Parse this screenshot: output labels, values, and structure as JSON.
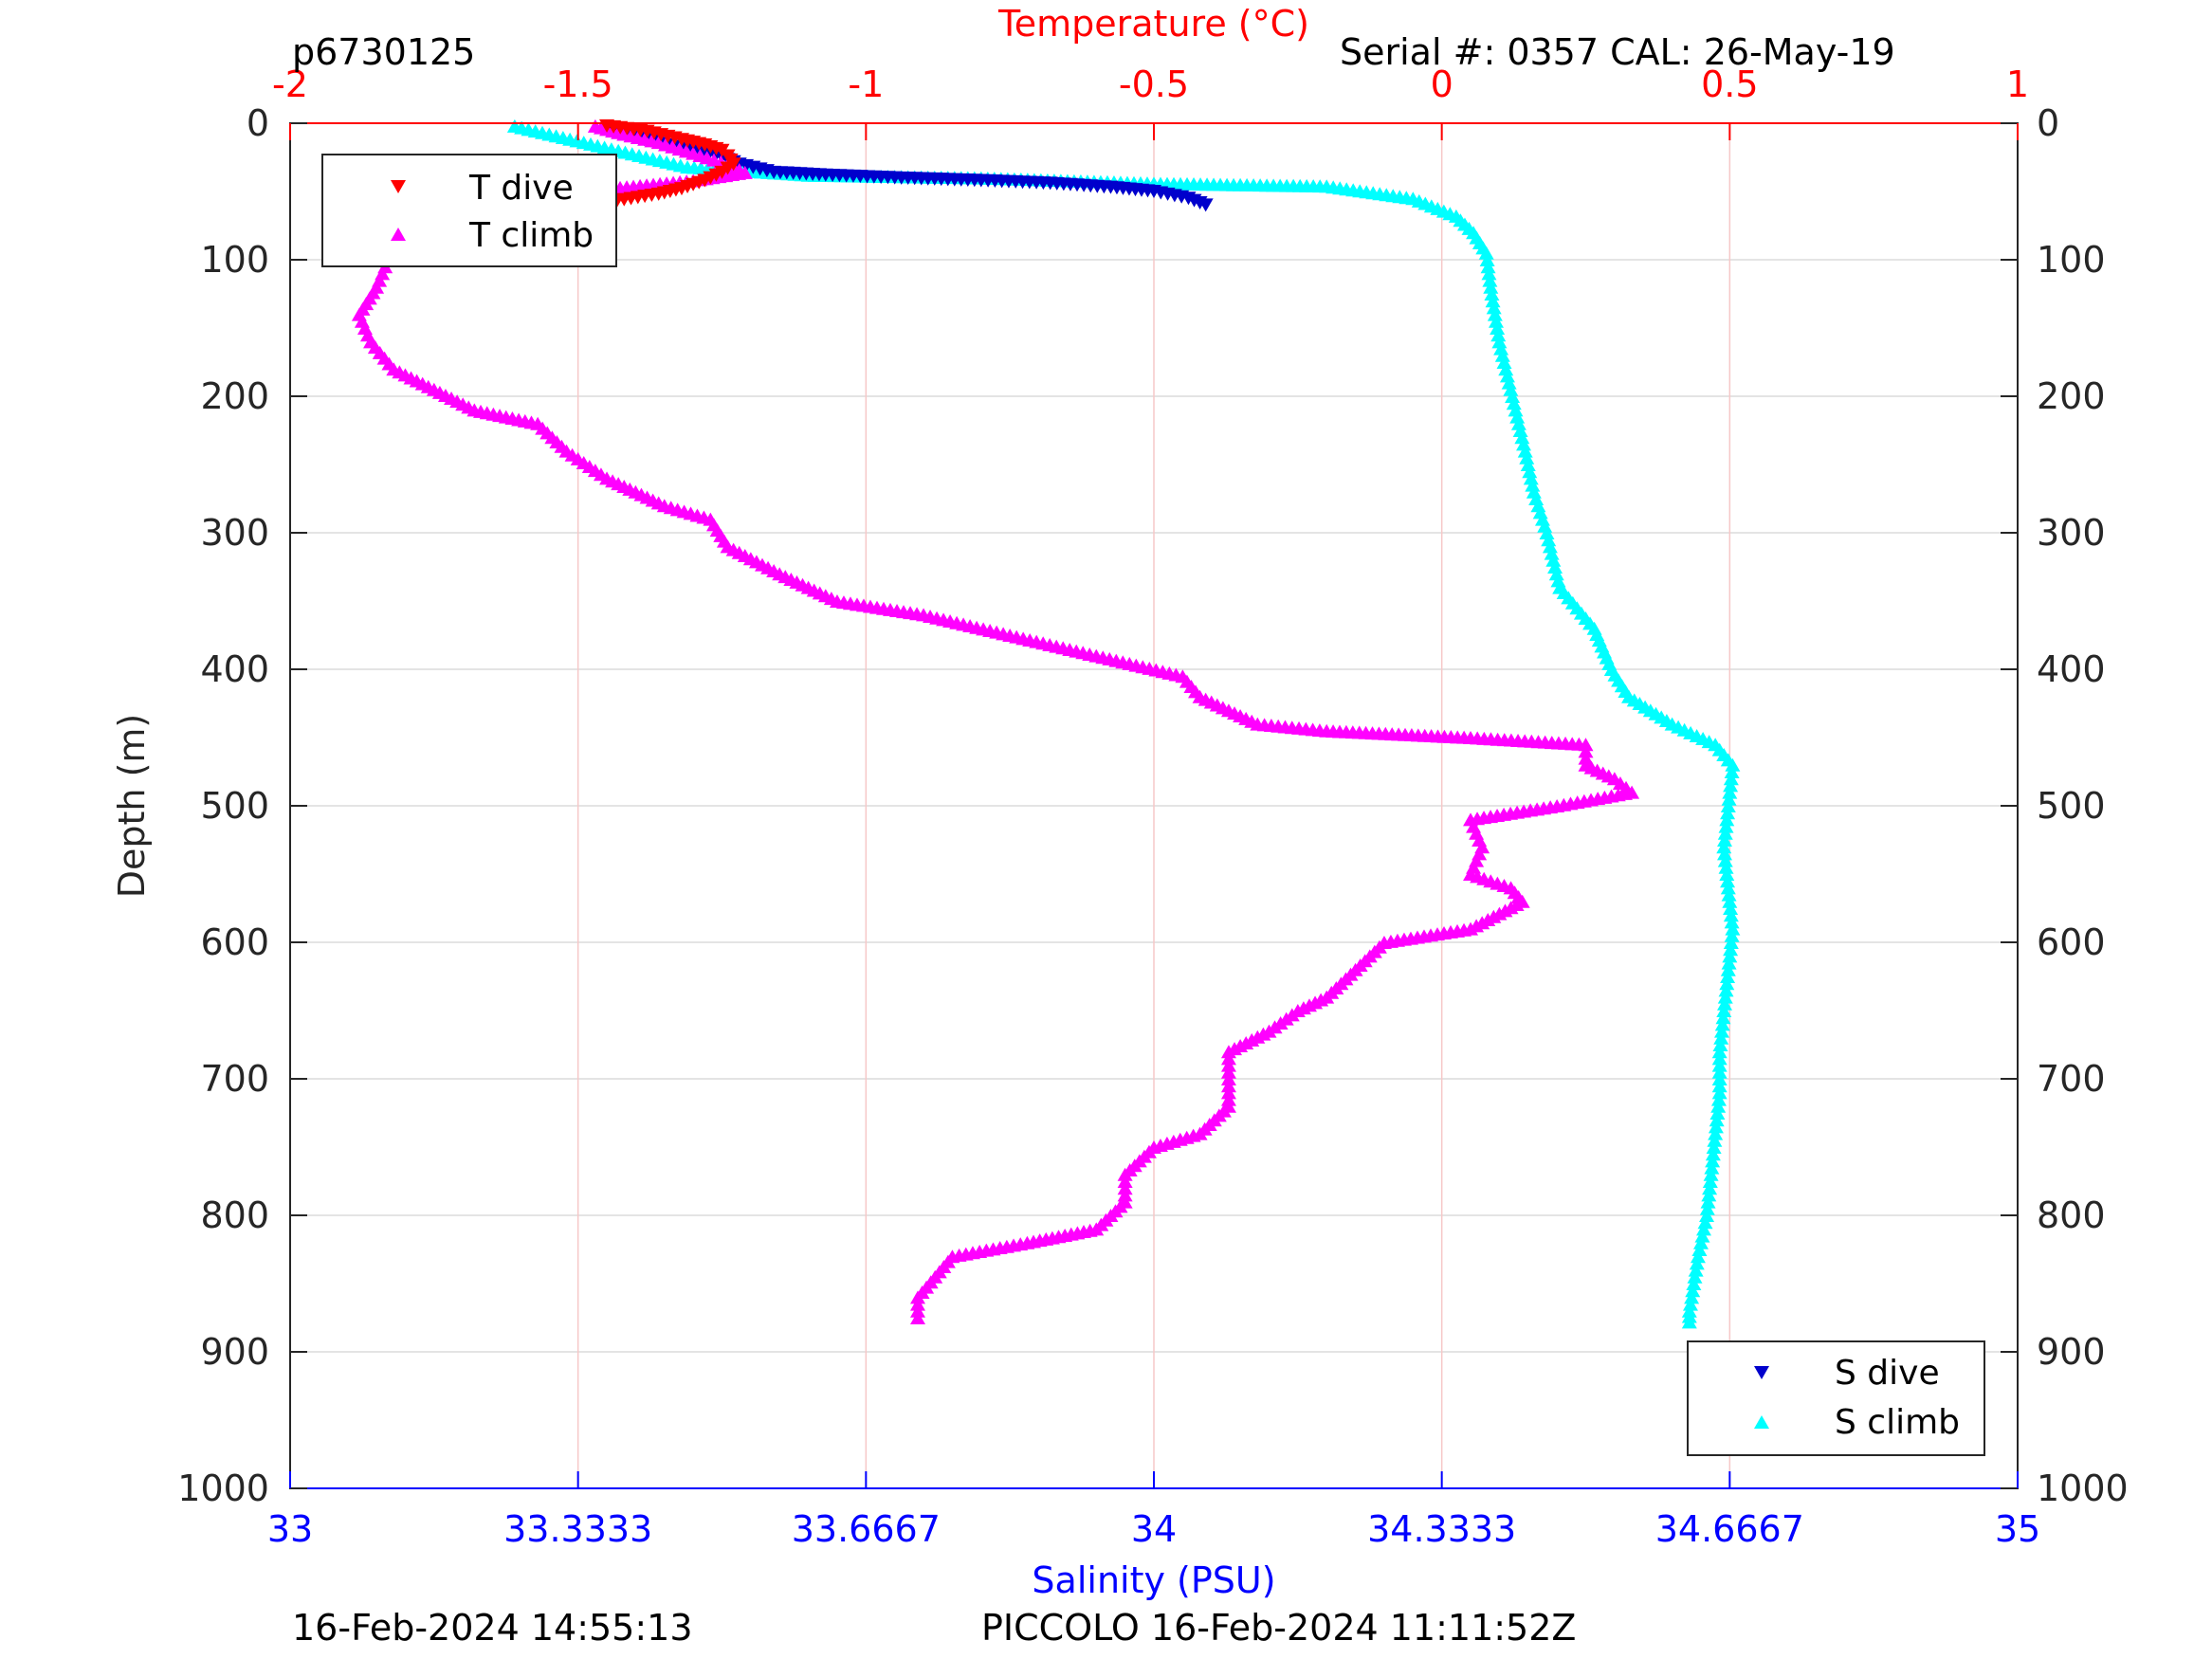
{
  "header": {
    "profile_id": "p6730125",
    "serial": "Serial #: 0357  CAL: 26-May-19"
  },
  "footer": {
    "plot_time": "16-Feb-2024 14:55:13",
    "mission": "PICCOLO 16-Feb-2024 11:11:52Z"
  },
  "colors": {
    "t_dive": "#ff0000",
    "t_climb": "#ff00ff",
    "s_dive": "#0000cc",
    "s_climb": "#00ffff",
    "temp_axis": "#ff0000",
    "sal_axis": "#0000ff"
  },
  "chart_data": {
    "type": "scatter",
    "ylabel": "Depth (m)",
    "ylim": [
      0,
      1000
    ],
    "y_reversed": true,
    "y_ticks": [
      "0",
      "100",
      "200",
      "300",
      "400",
      "500",
      "600",
      "700",
      "800",
      "900",
      "1000"
    ],
    "top_axis": {
      "label": "Temperature (°C)",
      "lim": [
        -2,
        1
      ],
      "ticks": [
        "-2",
        "-1.5",
        "-1",
        "-0.5",
        "0",
        "0.5",
        "1"
      ]
    },
    "bottom_axis": {
      "label": "Salinity (PSU)",
      "lim": [
        33,
        35
      ],
      "ticks": [
        "33",
        "33.3333",
        "33.6667",
        "34",
        "34.3333",
        "34.6667",
        "35"
      ]
    },
    "legend_temperature": {
      "position": "top-left",
      "entries": [
        "T dive",
        "T climb"
      ]
    },
    "legend_salinity": {
      "position": "bottom-right",
      "entries": [
        "S dive",
        "S climb"
      ]
    },
    "series": [
      {
        "name": "T dive",
        "axis": "temperature",
        "marker": "triangle-down",
        "points": [
          [
            -1.45,
            2
          ],
          [
            -1.38,
            6
          ],
          [
            -1.32,
            12
          ],
          [
            -1.28,
            16
          ],
          [
            -1.25,
            20
          ],
          [
            -1.24,
            24
          ],
          [
            -1.23,
            30
          ],
          [
            -1.25,
            36
          ],
          [
            -1.28,
            42
          ],
          [
            -1.32,
            48
          ],
          [
            -1.36,
            52
          ],
          [
            -1.42,
            56
          ],
          [
            -1.47,
            60
          ],
          [
            -1.5,
            62
          ]
        ]
      },
      {
        "name": "T climb",
        "axis": "temperature",
        "marker": "triangle-up",
        "points": [
          [
            -1.47,
            2
          ],
          [
            -1.42,
            8
          ],
          [
            -1.36,
            14
          ],
          [
            -1.3,
            22
          ],
          [
            -1.24,
            30
          ],
          [
            -1.21,
            36
          ],
          [
            -1.3,
            42
          ],
          [
            -1.45,
            48
          ],
          [
            -1.58,
            55
          ],
          [
            -1.7,
            65
          ],
          [
            -1.77,
            75
          ],
          [
            -1.8,
            85
          ],
          [
            -1.83,
            100
          ],
          [
            -1.85,
            120
          ],
          [
            -1.88,
            140
          ],
          [
            -1.86,
            160
          ],
          [
            -1.82,
            180
          ],
          [
            -1.75,
            195
          ],
          [
            -1.68,
            210
          ],
          [
            -1.57,
            220
          ],
          [
            -1.52,
            240
          ],
          [
            -1.45,
            260
          ],
          [
            -1.35,
            280
          ],
          [
            -1.27,
            290
          ],
          [
            -1.24,
            310
          ],
          [
            -1.15,
            330
          ],
          [
            -1.05,
            350
          ],
          [
            -0.9,
            360
          ],
          [
            -0.75,
            375
          ],
          [
            -0.6,
            390
          ],
          [
            -0.45,
            405
          ],
          [
            -0.42,
            420
          ],
          [
            -0.32,
            440
          ],
          [
            -0.2,
            445
          ],
          [
            0.05,
            450
          ],
          [
            0.25,
            455
          ],
          [
            0.25,
            470
          ],
          [
            0.3,
            480
          ],
          [
            0.33,
            490
          ],
          [
            0.2,
            500
          ],
          [
            0.05,
            510
          ],
          [
            0.07,
            530
          ],
          [
            0.05,
            550
          ],
          [
            0.12,
            560
          ],
          [
            0.14,
            570
          ],
          [
            0.05,
            590
          ],
          [
            -0.1,
            600
          ],
          [
            -0.15,
            620
          ],
          [
            -0.2,
            640
          ],
          [
            -0.25,
            650
          ],
          [
            -0.3,
            665
          ],
          [
            -0.37,
            680
          ],
          [
            -0.37,
            700
          ],
          [
            -0.37,
            720
          ],
          [
            -0.42,
            740
          ],
          [
            -0.5,
            750
          ],
          [
            -0.55,
            770
          ],
          [
            -0.55,
            790
          ],
          [
            -0.6,
            810
          ],
          [
            -0.72,
            820
          ],
          [
            -0.85,
            830
          ],
          [
            -0.88,
            845
          ],
          [
            -0.91,
            860
          ],
          [
            -0.91,
            875
          ]
        ]
      },
      {
        "name": "S dive",
        "axis": "salinity",
        "marker": "triangle-down",
        "points": [
          [
            33.37,
            4
          ],
          [
            33.39,
            8
          ],
          [
            33.41,
            12
          ],
          [
            33.44,
            16
          ],
          [
            33.47,
            20
          ],
          [
            33.5,
            25
          ],
          [
            33.52,
            30
          ],
          [
            33.56,
            36
          ],
          [
            33.62,
            38
          ],
          [
            33.7,
            40
          ],
          [
            33.8,
            42
          ],
          [
            33.88,
            44
          ],
          [
            33.95,
            47
          ],
          [
            34.0,
            50
          ],
          [
            34.04,
            55
          ],
          [
            34.06,
            60
          ]
        ]
      },
      {
        "name": "S climb",
        "axis": "salinity",
        "marker": "triangle-up",
        "points": [
          [
            33.26,
            2
          ],
          [
            33.3,
            8
          ],
          [
            33.34,
            14
          ],
          [
            33.38,
            20
          ],
          [
            33.42,
            26
          ],
          [
            33.46,
            32
          ],
          [
            33.6,
            38
          ],
          [
            33.8,
            40
          ],
          [
            34.0,
            44
          ],
          [
            34.2,
            46
          ],
          [
            34.3,
            55
          ],
          [
            34.35,
            68
          ],
          [
            34.37,
            80
          ],
          [
            34.385,
            95
          ],
          [
            34.39,
            120
          ],
          [
            34.4,
            160
          ],
          [
            34.415,
            200
          ],
          [
            34.43,
            240
          ],
          [
            34.44,
            270
          ],
          [
            34.455,
            300
          ],
          [
            34.47,
            340
          ],
          [
            34.51,
            370
          ],
          [
            34.53,
            400
          ],
          [
            34.55,
            420
          ],
          [
            34.6,
            440
          ],
          [
            34.65,
            455
          ],
          [
            34.67,
            470
          ],
          [
            34.665,
            500
          ],
          [
            34.66,
            530
          ],
          [
            34.665,
            560
          ],
          [
            34.67,
            590
          ],
          [
            34.665,
            620
          ],
          [
            34.66,
            650
          ],
          [
            34.655,
            680
          ],
          [
            34.655,
            710
          ],
          [
            34.65,
            740
          ],
          [
            34.645,
            770
          ],
          [
            34.64,
            800
          ],
          [
            34.63,
            830
          ],
          [
            34.625,
            850
          ],
          [
            34.62,
            870
          ],
          [
            34.62,
            878
          ]
        ]
      }
    ]
  }
}
